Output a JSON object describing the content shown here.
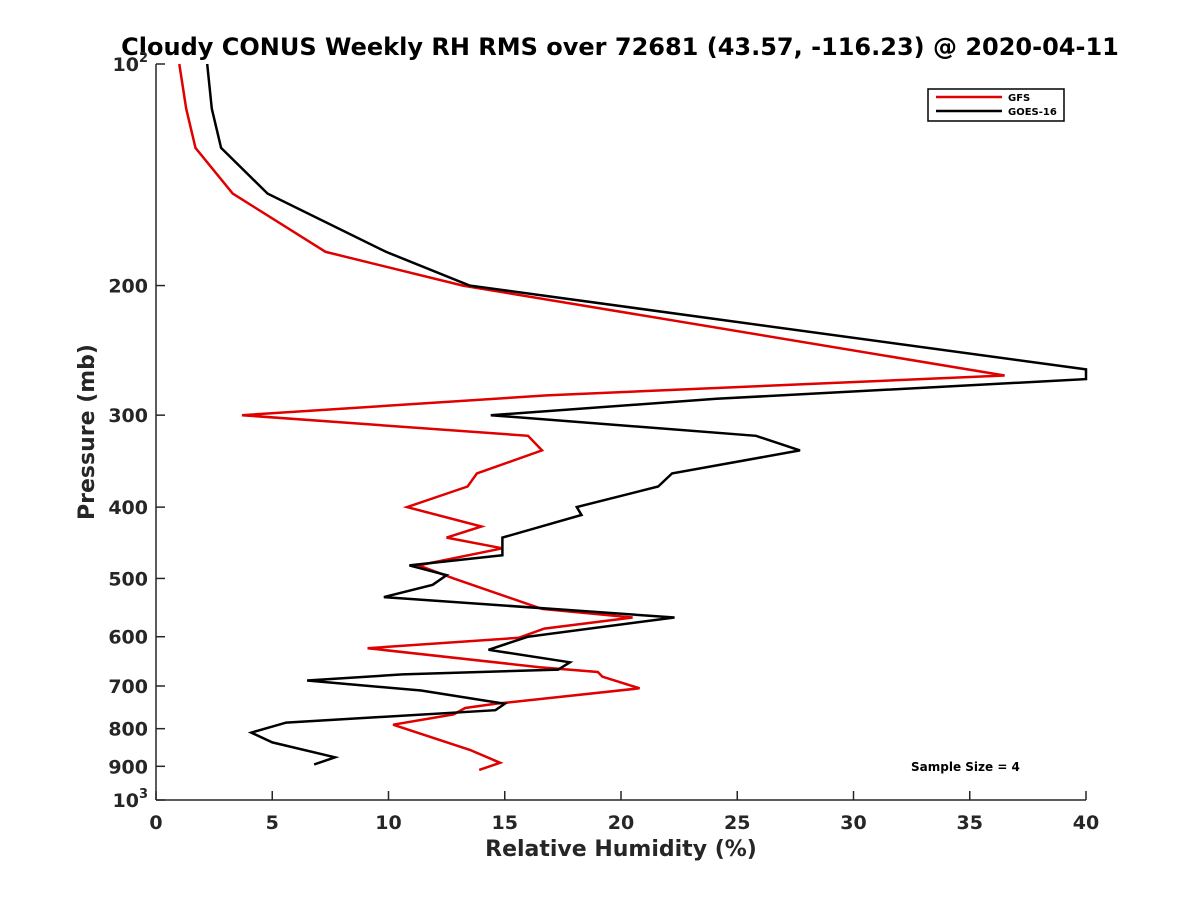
{
  "chart_data": {
    "type": "line",
    "title": "Cloudy CONUS Weekly RH RMS over 72681 (43.57, -116.23) @ 2020-04-11",
    "xlabel": "Relative Humidity (%)",
    "ylabel": "Pressure (mb)",
    "xlim": [
      0,
      40
    ],
    "ylim": [
      100,
      1000
    ],
    "yscale": "log",
    "y_reversed": true,
    "grid": false,
    "legend_position": "top-right",
    "x_ticks": [
      0,
      5,
      10,
      15,
      20,
      25,
      30,
      35,
      40
    ],
    "x_tick_labels": [
      "0",
      "5",
      "10",
      "15",
      "20",
      "25",
      "30",
      "35",
      "40"
    ],
    "y_ticks": [
      100,
      200,
      300,
      400,
      500,
      600,
      700,
      800,
      900,
      1000
    ],
    "y_tick_labels": [
      {
        "base": "10",
        "exp": "2"
      },
      {
        "base": "200",
        "exp": ""
      },
      {
        "base": "300",
        "exp": ""
      },
      {
        "base": "400",
        "exp": ""
      },
      {
        "base": "500",
        "exp": ""
      },
      {
        "base": "600",
        "exp": ""
      },
      {
        "base": "700",
        "exp": ""
      },
      {
        "base": "800",
        "exp": ""
      },
      {
        "base": "900",
        "exp": ""
      },
      {
        "base": "10",
        "exp": "3"
      }
    ],
    "annotation": "Sample Size = 4",
    "series": [
      {
        "name": "GFS",
        "color": "#e00000",
        "points": [
          [
            1.0,
            100
          ],
          [
            1.3,
            115
          ],
          [
            1.7,
            130
          ],
          [
            3.3,
            150
          ],
          [
            7.3,
            180
          ],
          [
            13.2,
            200
          ],
          [
            36.5,
            265
          ],
          [
            16.8,
            282
          ],
          [
            3.7,
            300
          ],
          [
            16.0,
            320
          ],
          [
            16.6,
            335
          ],
          [
            13.8,
            360
          ],
          [
            13.4,
            375
          ],
          [
            10.8,
            400
          ],
          [
            14.0,
            425
          ],
          [
            12.5,
            440
          ],
          [
            14.9,
            455
          ],
          [
            11.3,
            480
          ],
          [
            12.8,
            500
          ],
          [
            16.6,
            550
          ],
          [
            20.5,
            565
          ],
          [
            16.7,
            585
          ],
          [
            15.6,
            602
          ],
          [
            9.1,
            622
          ],
          [
            16.5,
            660
          ],
          [
            19.0,
            670
          ],
          [
            19.2,
            680
          ],
          [
            20.8,
            705
          ],
          [
            14.6,
            740
          ],
          [
            13.3,
            750
          ],
          [
            12.8,
            765
          ],
          [
            10.2,
            790
          ],
          [
            13.5,
            855
          ],
          [
            14.8,
            890
          ],
          [
            13.9,
            910
          ]
        ]
      },
      {
        "name": "GOES-16",
        "color": "#000000",
        "points": [
          [
            2.2,
            100
          ],
          [
            2.4,
            115
          ],
          [
            2.8,
            130
          ],
          [
            4.8,
            150
          ],
          [
            9.9,
            180
          ],
          [
            13.5,
            200
          ],
          [
            40.0,
            260
          ],
          [
            40.0,
            268
          ],
          [
            24.1,
            285
          ],
          [
            14.4,
            300
          ],
          [
            25.8,
            320
          ],
          [
            27.7,
            335
          ],
          [
            22.2,
            360
          ],
          [
            21.6,
            375
          ],
          [
            18.1,
            400
          ],
          [
            18.3,
            410
          ],
          [
            14.9,
            440
          ],
          [
            14.9,
            465
          ],
          [
            10.9,
            480
          ],
          [
            12.5,
            495
          ],
          [
            11.9,
            510
          ],
          [
            9.8,
            530
          ],
          [
            22.3,
            565
          ],
          [
            16.0,
            600
          ],
          [
            14.3,
            625
          ],
          [
            17.8,
            650
          ],
          [
            17.3,
            665
          ],
          [
            10.6,
            675
          ],
          [
            6.5,
            688
          ],
          [
            11.4,
            710
          ],
          [
            15.0,
            740
          ],
          [
            14.6,
            755
          ],
          [
            5.6,
            785
          ],
          [
            4.1,
            810
          ],
          [
            5.0,
            835
          ],
          [
            7.7,
            875
          ],
          [
            6.8,
            895
          ]
        ]
      }
    ]
  }
}
